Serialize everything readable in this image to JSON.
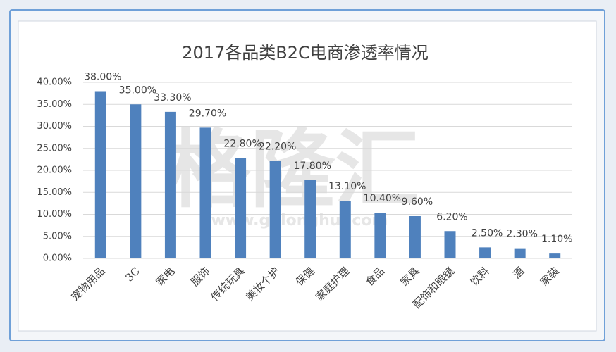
{
  "chart_data": {
    "type": "bar",
    "title": "2017各品类B2C电商渗透率情况",
    "watermark": "格隆汇",
    "watermark_url": "www.gelonghui.com",
    "categories": [
      "宠物用品",
      "3C",
      "家电",
      "服饰",
      "传统玩具",
      "美妆个护",
      "保健",
      "家庭护理",
      "食品",
      "家具",
      "配饰和眼镜",
      "饮料",
      "酒",
      "家装"
    ],
    "values": [
      38,
      35,
      33.3,
      29.7,
      22.8,
      22.2,
      17.8,
      13.1,
      10.4,
      9.6,
      6.2,
      2.5,
      2.3,
      1.1
    ],
    "value_labels": [
      "38.00%",
      "35.00%",
      "33.30%",
      "29.70%",
      "22.80%",
      "22.20%",
      "17.80%",
      "13.10%",
      "10.40%",
      "9.60%",
      "6.20%",
      "2.50%",
      "2.30%",
      "1.10%"
    ],
    "color": "#4f81bd",
    "ylim": [
      0,
      40
    ],
    "yticks": [
      {
        "value": 0,
        "label": "0.00%"
      },
      {
        "value": 5,
        "label": "5.00%"
      },
      {
        "value": 10,
        "label": "10.00%"
      },
      {
        "value": 15,
        "label": "15.00%"
      },
      {
        "value": 20,
        "label": "20.00%"
      },
      {
        "value": 25,
        "label": "25.00%"
      },
      {
        "value": 30,
        "label": "30.00%"
      },
      {
        "value": 35,
        "label": "35.00%"
      },
      {
        "value": 40,
        "label": "40.00%"
      }
    ],
    "grid": true
  }
}
